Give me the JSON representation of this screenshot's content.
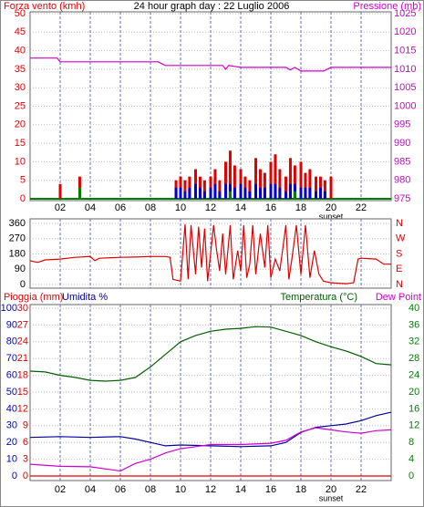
{
  "title": "24 hour graph day : 22 Luglio 2006",
  "chart_data": [
    {
      "type": "bar",
      "xlim": [
        0,
        24
      ],
      "xticks": [
        {
          "value": 2,
          "label": "02"
        },
        {
          "value": 4,
          "label": "04"
        },
        {
          "value": 6,
          "label": "06"
        },
        {
          "value": 8,
          "label": "08"
        },
        {
          "value": 10,
          "label": "10"
        },
        {
          "value": 12,
          "label": "12"
        },
        {
          "value": 14,
          "label": "14"
        },
        {
          "value": 16,
          "label": "16"
        },
        {
          "value": 18,
          "label": "18"
        },
        {
          "value": 20,
          "label": "20"
        },
        {
          "value": 22,
          "label": "22"
        }
      ],
      "ylim": [
        0,
        50
      ],
      "yticks": [
        0,
        5,
        10,
        15,
        20,
        25,
        30,
        35,
        40,
        45,
        50
      ],
      "ytick_color": "#e00000",
      "y2lim": [
        975,
        1025
      ],
      "y2ticks": [
        975,
        980,
        985,
        990,
        995,
        1000,
        1005,
        1010,
        1015,
        1020,
        1025
      ],
      "y2tick_color": "#d000d0",
      "grid": true,
      "annotations": [
        {
          "text": "sunset",
          "x": 20
        }
      ],
      "series": [
        {
          "name": "Forza vento (kmh)",
          "color": "#e00000",
          "x": [
            2.0,
            3.3,
            9.7,
            10.0,
            10.3,
            10.6,
            11.0,
            11.3,
            11.6,
            12.0,
            12.3,
            12.6,
            13.0,
            13.3,
            13.6,
            14.0,
            14.3,
            14.6,
            15.0,
            15.3,
            15.6,
            16.0,
            16.3,
            16.6,
            17.0,
            17.3,
            17.6,
            18.0,
            18.3,
            18.6,
            19.0,
            19.3,
            19.6,
            20.0
          ],
          "values": [
            4,
            6,
            5,
            6,
            5,
            6,
            8,
            6,
            5,
            6,
            8,
            5,
            10,
            13,
            9,
            8,
            6,
            5,
            11,
            8,
            7,
            10,
            12,
            8,
            6,
            11,
            9,
            10,
            7,
            8,
            6,
            6,
            5,
            6
          ]
        },
        {
          "color": "#0000d0",
          "x": [
            2.0,
            3.3,
            9.7,
            10.0,
            10.3,
            10.6,
            11.0,
            11.3,
            11.6,
            12.0,
            12.3,
            12.6,
            13.0,
            13.3,
            13.6,
            14.0,
            14.3,
            14.6,
            15.0,
            15.3,
            15.6,
            16.0,
            16.3,
            16.6,
            17.0,
            17.3,
            17.6,
            18.0,
            18.3,
            18.6,
            19.0,
            19.3,
            19.6,
            20.0
          ],
          "values": [
            0,
            0,
            3,
            3,
            2,
            3,
            4,
            3,
            2,
            3,
            4,
            2,
            4,
            4,
            3,
            4,
            3,
            2,
            4,
            3,
            3,
            4,
            4,
            3,
            2,
            4,
            4,
            3,
            3,
            3,
            2,
            3,
            2,
            0
          ]
        },
        {
          "color": "#008000",
          "x": [
            3.3,
            13.3,
            17.6
          ],
          "values": [
            3,
            2,
            2
          ]
        },
        {
          "name": "Pressione (mb)",
          "type": "line",
          "axis": "y2",
          "color": "#d000d0",
          "x": [
            0,
            1.8,
            2,
            8.5,
            9,
            12.8,
            13,
            13.2,
            14,
            17,
            17.3,
            17.6,
            18,
            19.5,
            20,
            24
          ],
          "values": [
            1013,
            1013,
            1012,
            1012,
            1011,
            1011,
            1010,
            1011,
            1010.5,
            1010.5,
            1009.8,
            1010.5,
            1009.5,
            1009.5,
            1010.5,
            1010.5
          ]
        }
      ]
    },
    {
      "type": "line",
      "xlim": [
        0,
        24
      ],
      "xticks": [
        {
          "value": 2,
          "label": "02"
        },
        {
          "value": 4,
          "label": "04"
        },
        {
          "value": 6,
          "label": "06"
        },
        {
          "value": 8,
          "label": "08"
        },
        {
          "value": 10,
          "label": "10"
        },
        {
          "value": 12,
          "label": "12"
        },
        {
          "value": 14,
          "label": "14"
        },
        {
          "value": 16,
          "label": "16"
        },
        {
          "value": 18,
          "label": "18"
        },
        {
          "value": 20,
          "label": "20"
        },
        {
          "value": 22,
          "label": "22"
        }
      ],
      "ylim": [
        0,
        360
      ],
      "yticks": [
        0,
        90,
        180,
        270,
        360
      ],
      "ytick_color": "#000000",
      "y2lim": [
        0,
        360
      ],
      "y2ticks": [
        {
          "value": 0,
          "label": "N"
        },
        {
          "value": 90,
          "label": "E"
        },
        {
          "value": 180,
          "label": "S"
        },
        {
          "value": 270,
          "label": "W"
        },
        {
          "value": 360,
          "label": "N"
        }
      ],
      "y2tick_color": "#e00000",
      "grid": true,
      "series": [
        {
          "color": "#e00000",
          "x": [
            0,
            0.5,
            1,
            2,
            3,
            4,
            4.3,
            4.6,
            6,
            7,
            8,
            9,
            9.3,
            9.5,
            10,
            10.3,
            10.5,
            10.7,
            11,
            11.2,
            11.4,
            11.6,
            11.8,
            12.2,
            12.4,
            12.6,
            12.8,
            13,
            13.3,
            13.5,
            13.8,
            14,
            14.2,
            14.4,
            14.6,
            14.8,
            15,
            15.3,
            15.6,
            15.8,
            16,
            16.3,
            16.6,
            17,
            17.2,
            17.4,
            17.7,
            18,
            18.3,
            18.6,
            18.9,
            19.2,
            19.5,
            20,
            21,
            21.5,
            21.8,
            22,
            23,
            23.5,
            24
          ],
          "values": [
            140,
            130,
            145,
            150,
            160,
            165,
            140,
            155,
            160,
            162,
            165,
            165,
            160,
            30,
            20,
            355,
            30,
            350,
            60,
            340,
            100,
            330,
            20,
            350,
            200,
            80,
            300,
            60,
            350,
            30,
            200,
            80,
            350,
            40,
            120,
            350,
            60,
            300,
            100,
            350,
            40,
            150,
            80,
            350,
            30,
            150,
            350,
            60,
            350,
            40,
            200,
            60,
            20,
            10,
            5,
            10,
            150,
            155,
            150,
            120,
            120
          ]
        }
      ]
    },
    {
      "type": "line",
      "xlim": [
        0,
        24
      ],
      "xticks": [
        {
          "value": 2,
          "label": "02"
        },
        {
          "value": 4,
          "label": "04"
        },
        {
          "value": 6,
          "label": "06"
        },
        {
          "value": 8,
          "label": "08"
        },
        {
          "value": 10,
          "label": "10"
        },
        {
          "value": 12,
          "label": "12"
        },
        {
          "value": 14,
          "label": "14"
        },
        {
          "value": 16,
          "label": "16"
        },
        {
          "value": 18,
          "label": "18"
        },
        {
          "value": 20,
          "label": "20"
        },
        {
          "value": 22,
          "label": "22"
        }
      ],
      "ylim": [
        0,
        100
      ],
      "yticks": [
        0,
        10,
        20,
        30,
        40,
        50,
        60,
        70,
        80,
        90,
        100
      ],
      "ytick_color": "#0000d0",
      "y3lim": [
        0,
        30
      ],
      "y3ticks": [
        0,
        3,
        6,
        9,
        12,
        15,
        18,
        21,
        24,
        27,
        30
      ],
      "y3tick_color": "#e00000",
      "y2lim": [
        0,
        40
      ],
      "y2ticks": [
        0,
        4,
        8,
        12,
        16,
        20,
        24,
        28,
        32,
        36,
        40
      ],
      "y2tick_color": "#008000",
      "grid": true,
      "annotations": [
        {
          "text": "sunset",
          "x": 20
        }
      ],
      "series": [
        {
          "name": "Pioggia (mm)",
          "axis": "y3",
          "color": "#e00000",
          "x": [
            0,
            24
          ],
          "values": [
            0,
            0
          ]
        },
        {
          "name": "Umidita %",
          "color": "#0000a0",
          "x": [
            0,
            2,
            4,
            6,
            7,
            8,
            9,
            10,
            12,
            14,
            16,
            17,
            18,
            19,
            20,
            21,
            22,
            23,
            24
          ],
          "values": [
            23,
            23.5,
            23,
            23.5,
            22,
            20,
            18,
            18.5,
            18,
            17.5,
            18,
            20,
            26,
            29,
            30,
            31,
            33,
            36,
            38
          ]
        },
        {
          "name": "Temperatura (°C)",
          "axis": "y2",
          "color": "#006000",
          "x": [
            0,
            1,
            2,
            3,
            4,
            5,
            6,
            7,
            8,
            9,
            10,
            11,
            12,
            13,
            14,
            15,
            16,
            17,
            18,
            19,
            20,
            21,
            22,
            23,
            24
          ],
          "values": [
            25,
            24.8,
            24,
            23.5,
            22.8,
            22.6,
            22.8,
            23.5,
            26,
            29,
            32,
            33.5,
            34.5,
            35,
            35.2,
            35.6,
            35.5,
            34.5,
            33.5,
            32,
            30.8,
            29.8,
            28.5,
            26.8,
            26.5
          ]
        },
        {
          "name": "Dew Point",
          "axis": "y2",
          "color": "#d000d0",
          "x": [
            0,
            2,
            4,
            6,
            7,
            8,
            9,
            10,
            11,
            12,
            14,
            16,
            17,
            18,
            19,
            20,
            21,
            22,
            23,
            24
          ],
          "values": [
            2.8,
            2.3,
            2.2,
            1.2,
            3,
            4,
            5.5,
            6.5,
            7,
            7.5,
            7.5,
            7.8,
            8.5,
            10.5,
            11.5,
            11,
            10.5,
            10.2,
            10.8,
            11
          ]
        }
      ]
    }
  ]
}
